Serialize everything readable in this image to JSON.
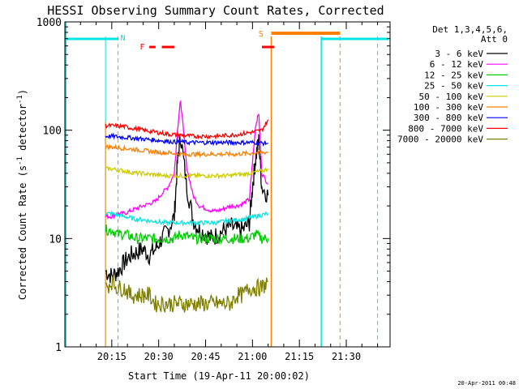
{
  "chart_data": {
    "type": "line",
    "title": "HESSI Observing Summary Count Rates, Corrected",
    "xlabel": "Start Time (19-Apr-11 20:00:02)",
    "ylabel_main": "Corrected Count Rate (s",
    "ylabel_sup1": "-1",
    "ylabel_mid": " detector",
    "ylabel_sup2": "-1",
    "ylabel_end": ")",
    "y_scale": "log",
    "ylim": [
      1,
      1000
    ],
    "xlim_minutes": [
      0,
      104
    ],
    "x_ticks": [
      {
        "m": 15,
        "label": "20:15"
      },
      {
        "m": 30,
        "label": "20:30"
      },
      {
        "m": 45,
        "label": "20:45"
      },
      {
        "m": 60,
        "label": "21:00"
      },
      {
        "m": 75,
        "label": "21:15"
      },
      {
        "m": 90,
        "label": "21:30"
      }
    ],
    "y_ticks": [
      {
        "v": 1,
        "label": "1"
      },
      {
        "v": 10,
        "label": "10"
      },
      {
        "v": 100,
        "label": "100"
      },
      {
        "v": 1000,
        "label": "1000"
      }
    ],
    "legend_header": [
      "Det 1,3,4,5,6,",
      "Att 0"
    ],
    "legend_position": "top-right",
    "series": [
      {
        "name": "3 - 6 keV",
        "color": "#000000",
        "x": [
          13,
          15,
          17,
          19,
          21,
          23,
          25,
          27,
          29,
          31,
          33,
          35,
          36,
          37,
          39,
          41,
          43,
          45,
          47,
          49,
          51,
          53,
          55,
          57,
          59,
          60,
          61,
          62,
          63,
          65
        ],
        "y": [
          5,
          4.5,
          5,
          6,
          7,
          7.5,
          8,
          7,
          8,
          10,
          12,
          16,
          50,
          90,
          30,
          15,
          12,
          11,
          10,
          11,
          12,
          13,
          12,
          12,
          14,
          30,
          55,
          80,
          30,
          25
        ]
      },
      {
        "name": "6 - 12 keV",
        "color": "#ff00ff",
        "x": [
          13,
          15,
          17,
          19,
          21,
          23,
          25,
          27,
          29,
          31,
          33,
          35,
          36,
          37,
          39,
          41,
          43,
          45,
          47,
          49,
          51,
          53,
          55,
          57,
          59,
          60,
          61,
          62,
          63,
          65
        ],
        "y": [
          16,
          16,
          17,
          17,
          18,
          19,
          20,
          21,
          22,
          26,
          30,
          40,
          100,
          190,
          45,
          25,
          20,
          19,
          18,
          18,
          19,
          20,
          20,
          21,
          23,
          50,
          110,
          145,
          40,
          32
        ]
      },
      {
        "name": "12 - 25 keV",
        "color": "#00cc00",
        "x": [
          13,
          15,
          17,
          19,
          21,
          23,
          25,
          27,
          29,
          31,
          33,
          35,
          37,
          39,
          41,
          43,
          45,
          47,
          49,
          51,
          53,
          55,
          57,
          59,
          61,
          63,
          65
        ],
        "y": [
          12,
          12,
          11,
          11,
          10.5,
          10,
          10,
          10,
          10,
          10,
          10,
          10,
          11,
          10.5,
          10,
          10,
          10,
          10,
          10,
          10,
          10,
          10,
          10,
          10,
          11,
          10,
          10
        ]
      },
      {
        "name": "25 - 50 keV",
        "color": "#00e5e5",
        "x": [
          13,
          15,
          17,
          19,
          21,
          23,
          25,
          27,
          29,
          31,
          33,
          35,
          37,
          39,
          41,
          43,
          45,
          47,
          49,
          51,
          53,
          55,
          57,
          59,
          61,
          63,
          65
        ],
        "y": [
          17,
          17,
          16.5,
          16,
          15.5,
          15,
          15,
          14.5,
          14.5,
          14,
          14,
          14,
          14,
          14,
          14,
          14,
          14,
          14,
          14,
          14.5,
          14.5,
          15,
          15,
          15.5,
          16,
          16.5,
          17
        ]
      },
      {
        "name": "50 - 100 keV",
        "color": "#cccc00",
        "x": [
          13,
          15,
          17,
          19,
          21,
          23,
          25,
          27,
          29,
          31,
          33,
          35,
          37,
          39,
          41,
          43,
          45,
          47,
          49,
          51,
          53,
          55,
          57,
          59,
          61,
          63,
          65
        ],
        "y": [
          44,
          44,
          43,
          42,
          41,
          40,
          40,
          39,
          39,
          38,
          38,
          38,
          38,
          38,
          38,
          38,
          38,
          38,
          38,
          38,
          38,
          39,
          39,
          40,
          41,
          42,
          44
        ]
      },
      {
        "name": "100 - 300 keV",
        "color": "#ff7f00",
        "x": [
          13,
          15,
          17,
          19,
          21,
          23,
          25,
          27,
          29,
          31,
          33,
          35,
          37,
          39,
          41,
          43,
          45,
          47,
          49,
          51,
          53,
          55,
          57,
          59,
          61,
          63,
          65
        ],
        "y": [
          70,
          70,
          69,
          68,
          67,
          66,
          65,
          64,
          63,
          62,
          62,
          61,
          60,
          60,
          60,
          60,
          60,
          60,
          60,
          60,
          60,
          60,
          61,
          61,
          62,
          62,
          63
        ]
      },
      {
        "name": "300 - 800 keV",
        "color": "#0000ff",
        "x": [
          13,
          15,
          17,
          19,
          21,
          23,
          25,
          27,
          29,
          31,
          33,
          35,
          37,
          39,
          41,
          43,
          45,
          47,
          49,
          51,
          53,
          55,
          57,
          59,
          61,
          63,
          65
        ],
        "y": [
          88,
          88,
          87,
          86,
          85,
          84,
          83,
          82,
          81,
          80,
          79,
          78,
          78,
          77,
          77,
          77,
          77,
          77,
          77,
          77,
          77,
          77,
          77,
          77,
          77,
          76,
          76
        ]
      },
      {
        "name": "800 - 7000 keV",
        "color": "#ff0000",
        "x": [
          13,
          15,
          17,
          19,
          21,
          23,
          25,
          27,
          29,
          31,
          33,
          35,
          37,
          39,
          41,
          43,
          45,
          47,
          49,
          51,
          53,
          55,
          57,
          59,
          61,
          63,
          65
        ],
        "y": [
          110,
          110,
          109,
          108,
          105,
          103,
          100,
          98,
          96,
          94,
          92,
          91,
          90,
          89,
          88,
          88,
          88,
          88,
          88,
          89,
          90,
          91,
          93,
          95,
          97,
          100,
          125
        ]
      },
      {
        "name": "7000 - 20000 keV",
        "color": "#808000",
        "x": [
          13,
          15,
          17,
          19,
          21,
          23,
          25,
          27,
          29,
          31,
          33,
          35,
          37,
          39,
          41,
          43,
          45,
          47,
          49,
          51,
          53,
          55,
          57,
          59,
          61,
          63,
          65
        ],
        "y": [
          3.5,
          4,
          3.5,
          3.5,
          3,
          3,
          3,
          3,
          2.5,
          2.5,
          2.5,
          2.5,
          2.5,
          2.5,
          2.5,
          2.5,
          2.5,
          2.5,
          2.5,
          2.5,
          2.5,
          3,
          3,
          3.5,
          3.5,
          3.5,
          4
        ]
      }
    ],
    "markers": [
      {
        "label": "N",
        "color": "#00e5e5",
        "m": 17
      },
      {
        "label": "F",
        "color": "#ff0000",
        "m": 24
      },
      {
        "label": "S",
        "color": "#ff7f00",
        "m": 64
      }
    ]
  },
  "footer_timestamp": "20-Apr-2011 00:48"
}
